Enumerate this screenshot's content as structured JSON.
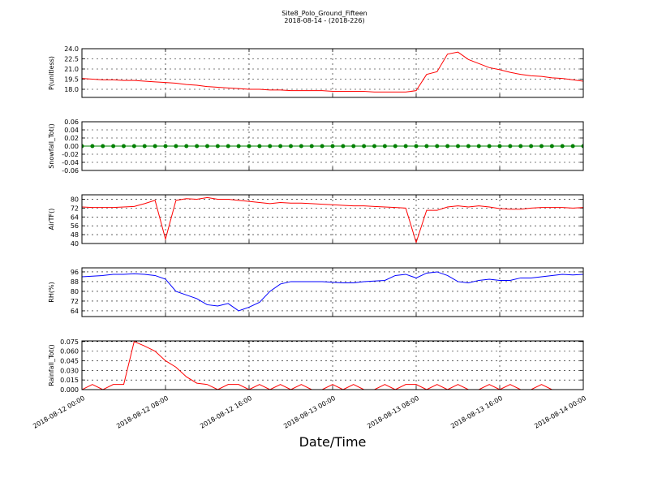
{
  "figure": {
    "title": "Site8_Polo_Ground_Fifteen",
    "subtitle": "2018-08-14 - (2018-226)",
    "xlabel": "Date/Time",
    "xlim": [
      "2018-08-12 00:00",
      "2018-08-14 00:00"
    ],
    "xticks": [
      "2018-08-12 00:00",
      "2018-08-12 08:00",
      "2018-08-12 16:00",
      "2018-08-13 00:00",
      "2018-08-13 08:00",
      "2018-08-13 16:00",
      "2018-08-14 00:00"
    ],
    "grid": true,
    "x": [
      "2018-08-12 00:00",
      "2018-08-12 01:00",
      "2018-08-12 02:00",
      "2018-08-12 03:00",
      "2018-08-12 04:00",
      "2018-08-12 05:00",
      "2018-08-12 06:00",
      "2018-08-12 07:00",
      "2018-08-12 08:00",
      "2018-08-12 09:00",
      "2018-08-12 10:00",
      "2018-08-12 11:00",
      "2018-08-12 12:00",
      "2018-08-12 13:00",
      "2018-08-12 14:00",
      "2018-08-12 15:00",
      "2018-08-12 16:00",
      "2018-08-12 17:00",
      "2018-08-12 18:00",
      "2018-08-12 19:00",
      "2018-08-12 20:00",
      "2018-08-12 21:00",
      "2018-08-12 22:00",
      "2018-08-12 23:00",
      "2018-08-13 00:00",
      "2018-08-13 01:00",
      "2018-08-13 02:00",
      "2018-08-13 03:00",
      "2018-08-13 04:00",
      "2018-08-13 05:00",
      "2018-08-13 06:00",
      "2018-08-13 07:00",
      "2018-08-13 08:00",
      "2018-08-13 09:00",
      "2018-08-13 10:00",
      "2018-08-13 11:00",
      "2018-08-13 12:00",
      "2018-08-13 13:00",
      "2018-08-13 14:00",
      "2018-08-13 15:00",
      "2018-08-13 16:00",
      "2018-08-13 17:00",
      "2018-08-13 18:00",
      "2018-08-13 19:00",
      "2018-08-13 20:00",
      "2018-08-13 21:00",
      "2018-08-13 22:00",
      "2018-08-13 23:00",
      "2018-08-14 00:00"
    ]
  },
  "chart_data": [
    {
      "type": "line",
      "ylabel": "P(unitless)",
      "ylim": [
        16.8,
        24.0
      ],
      "yticks": [
        {
          "value": 18,
          "label": "18.0"
        },
        19.5,
        {
          "value": 21,
          "label": "21.0"
        },
        22.5,
        {
          "value": 24,
          "label": "24.0"
        }
      ],
      "series": [
        {
          "color": "#ff0000",
          "values": [
            19.6,
            19.5,
            19.4,
            19.4,
            19.3,
            19.3,
            19.2,
            19.1,
            19.0,
            18.9,
            18.7,
            18.6,
            18.4,
            18.3,
            18.2,
            18.1,
            18.0,
            18.0,
            17.9,
            17.9,
            17.8,
            17.8,
            17.8,
            17.8,
            17.7,
            17.7,
            17.7,
            17.7,
            17.6,
            17.6,
            17.6,
            17.6,
            17.8,
            20.2,
            20.6,
            23.2,
            23.5,
            22.4,
            21.8,
            21.2,
            20.9,
            20.5,
            20.2,
            20.0,
            19.9,
            19.7,
            19.6,
            19.4,
            19.2
          ]
        }
      ]
    },
    {
      "type": "line",
      "ylabel": "Snowfall_Tot()",
      "ylim": [
        -0.06,
        0.06
      ],
      "yticks": [
        -0.06,
        -0.04,
        -0.02,
        {
          "value": 0,
          "label": "0.00"
        },
        0.02,
        0.04,
        0.06
      ],
      "series": [
        {
          "color": "#008000",
          "marker": true,
          "values": [
            0,
            0,
            0,
            0,
            0,
            0,
            0,
            0,
            0,
            0,
            0,
            0,
            0,
            0,
            0,
            0,
            0,
            0,
            0,
            0,
            0,
            0,
            0,
            0,
            0,
            0,
            0,
            0,
            0,
            0,
            0,
            0,
            0,
            0,
            0,
            0,
            0,
            0,
            0,
            0,
            0,
            0,
            0,
            0,
            0,
            0,
            0,
            0,
            0
          ]
        }
      ]
    },
    {
      "type": "line",
      "ylabel": "AirTF()",
      "ylim": [
        40,
        84
      ],
      "yticks": [
        40,
        48,
        56,
        64,
        72,
        80
      ],
      "series": [
        {
          "color": "#ff0000",
          "values": [
            73,
            72.5,
            72.5,
            72.5,
            73,
            73.5,
            76,
            79,
            44,
            79,
            80.5,
            80,
            81.5,
            80,
            80,
            79,
            78,
            77,
            76,
            77,
            76.5,
            76.5,
            76,
            75.5,
            75,
            74.5,
            74,
            74,
            73.5,
            73,
            72.5,
            72,
            41,
            70,
            70,
            73,
            74,
            73,
            74,
            73,
            71.5,
            71,
            71,
            72,
            72.5,
            72.5,
            72.5,
            72,
            72.5
          ]
        }
      ]
    },
    {
      "type": "line",
      "ylabel": "RH(%)",
      "ylim": [
        59.3,
        99.3
      ],
      "yticks": [
        64,
        72,
        80,
        88,
        96
      ],
      "series": [
        {
          "color": "#0000ff",
          "values": [
            92,
            92.5,
            93,
            94,
            94,
            94.5,
            94,
            93,
            90,
            80,
            77,
            74,
            69,
            68,
            70,
            64,
            67,
            71,
            80,
            86,
            88,
            88,
            88,
            88,
            87.5,
            87,
            87,
            88,
            88.5,
            89,
            93,
            94,
            91,
            95,
            96,
            93,
            88,
            87,
            89,
            90,
            89,
            89,
            91,
            91,
            92,
            93,
            94,
            93.5,
            94
          ]
        }
      ]
    },
    {
      "type": "line",
      "ylabel": "Rainfall_Tot()",
      "ylim": [
        0,
        0.076
      ],
      "yticks": [
        {
          "value": 0,
          "label": "0.000"
        },
        0.015,
        {
          "value": 0.03,
          "label": "0.030"
        },
        0.045,
        {
          "value": 0.06,
          "label": "0.060"
        },
        0.075
      ],
      "series": [
        {
          "color": "#ff0000",
          "values": [
            0,
            0.008,
            0,
            0.008,
            0.008,
            0.075,
            0.068,
            0.06,
            0.045,
            0.035,
            0.02,
            0.01,
            0.008,
            0,
            0.008,
            0.008,
            0,
            0.008,
            0,
            0.008,
            0,
            0.008,
            0,
            0,
            0.008,
            0,
            0.008,
            0,
            0,
            0.008,
            0,
            0.008,
            0.008,
            0,
            0.008,
            0,
            0.008,
            0,
            0,
            0.008,
            0,
            0.008,
            0,
            0,
            0.008,
            0,
            0,
            0,
            0
          ]
        }
      ]
    }
  ]
}
